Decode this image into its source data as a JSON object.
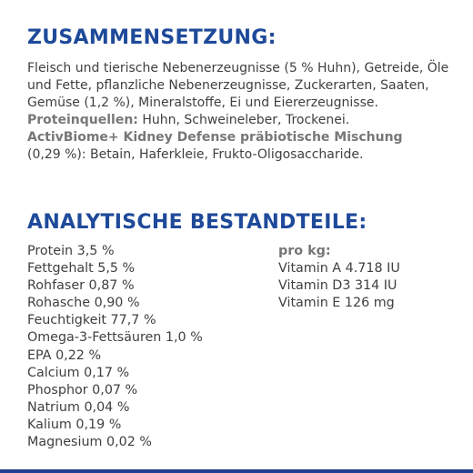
{
  "composition": {
    "heading": "ZUSAMMENSETZUNG:",
    "text": "Fleisch und tierische Nebenerzeugnisse (5 % Huhn), Getreide, Öle und Fette, pflanzliche Nebenerzeugnisse, Zuckerarten, Saaten, Gemüse (1,2 %), Mineralstoffe, Ei und Eiererzeugnisse.",
    "protein_label": "Proteinquellen:",
    "protein_text": " Huhn, Schweineleber, Trockenei.",
    "biome_label": "ActivBiome+ Kidney Defense präbiotische Mischung",
    "biome_text": "(0,29 %): Betain, Haferkleie, Frukto-Oligosaccharide."
  },
  "analysis": {
    "heading": "ANALYTISCHE BESTANDTEILE:",
    "left_items": [
      "Protein 3,5 %",
      "Fettgehalt 5,5 %",
      "Rohfaser 0,87 %",
      "Rohasche 0,90 %",
      "Feuchtigkeit 77,7 %",
      "Omega-3-Fettsäuren 1,0 %",
      "EPA 0,22 %",
      "Calcium 0,17 %",
      "Phosphor 0,07 %",
      "Natrium 0,04 %",
      "Kalium 0,19 %",
      "Magnesium 0,02 %"
    ],
    "right_subheading": "pro kg:",
    "right_items": [
      "Vitamin A 4.718 IU",
      "Vitamin D3 314 IU",
      "Vitamin E 126 mg"
    ]
  },
  "colors": {
    "heading": "#1f4a9a",
    "body_text": "#3f3f3f",
    "label_text": "#777777",
    "footer_bar": "#1f3f8f"
  }
}
